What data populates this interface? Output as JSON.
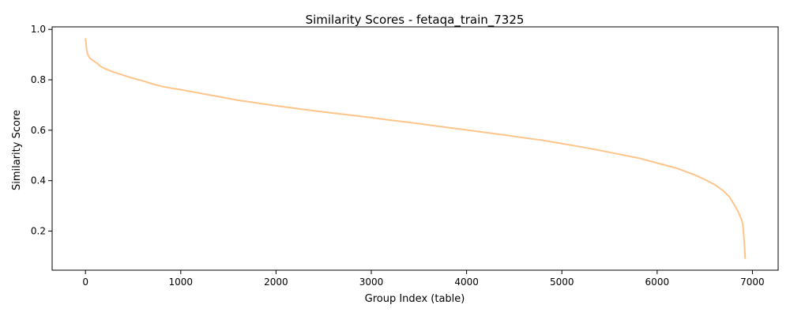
{
  "chart_data": {
    "type": "line",
    "title": "Similarity Scores - fetaqa_train_7325",
    "xlabel": "Group Index (table)",
    "ylabel": "Similarity Score",
    "xlim": [
      -350,
      7270
    ],
    "ylim": [
      0.045,
      1.01
    ],
    "xticks": [
      0,
      1000,
      2000,
      3000,
      4000,
      5000,
      6000,
      7000
    ],
    "yticks": [
      0.2,
      0.4,
      0.6,
      0.8,
      1.0
    ],
    "xtick_labels": [
      "0",
      "1000",
      "2000",
      "3000",
      "4000",
      "5000",
      "6000",
      "7000"
    ],
    "ytick_labels": [
      "0.2",
      "0.4",
      "0.6",
      "0.8",
      "1.0"
    ],
    "grid": false,
    "line_color": "#ffc48a",
    "series": [
      {
        "x": [
          0,
          10,
          20,
          40,
          80,
          120,
          160,
          200,
          300,
          400,
          500,
          600,
          700,
          800,
          900,
          1000,
          1200,
          1400,
          1600,
          1800,
          2000,
          2200,
          2400,
          2600,
          2800,
          3000,
          3200,
          3400,
          3600,
          3800,
          4000,
          4200,
          4400,
          4600,
          4800,
          5000,
          5200,
          5400,
          5600,
          5800,
          6000,
          6200,
          6400,
          6500,
          6600,
          6700,
          6760,
          6800,
          6840,
          6870,
          6890,
          6900,
          6910,
          6915,
          6920,
          6925
        ],
        "values": [
          0.965,
          0.925,
          0.905,
          0.888,
          0.876,
          0.866,
          0.853,
          0.845,
          0.83,
          0.818,
          0.806,
          0.796,
          0.784,
          0.774,
          0.767,
          0.761,
          0.747,
          0.733,
          0.719,
          0.708,
          0.697,
          0.687,
          0.677,
          0.668,
          0.659,
          0.65,
          0.64,
          0.631,
          0.621,
          0.611,
          0.601,
          0.591,
          0.581,
          0.57,
          0.56,
          0.547,
          0.534,
          0.52,
          0.505,
          0.49,
          0.47,
          0.45,
          0.422,
          0.405,
          0.385,
          0.358,
          0.335,
          0.31,
          0.285,
          0.26,
          0.24,
          0.225,
          0.18,
          0.15,
          0.12,
          0.09
        ]
      }
    ]
  }
}
